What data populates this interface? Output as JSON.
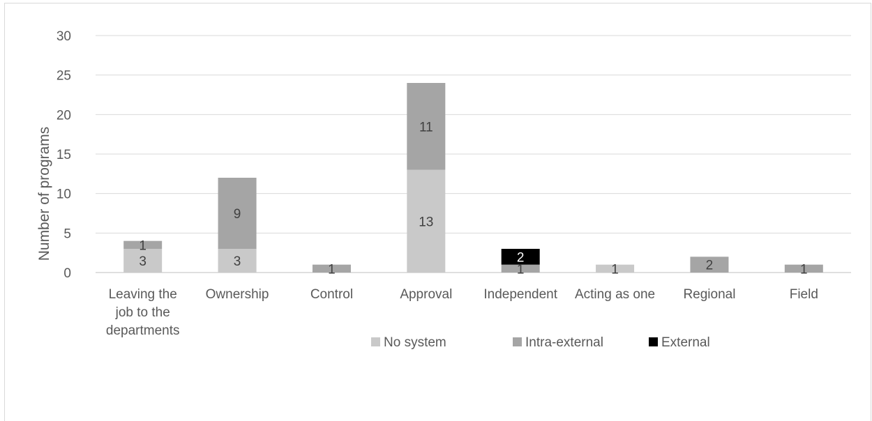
{
  "chart_data": {
    "type": "bar",
    "stacked": true,
    "title": "",
    "xlabel": "",
    "ylabel": "Number of programs",
    "ylim": [
      0,
      30
    ],
    "yticks": [
      0,
      5,
      10,
      15,
      20,
      25,
      30
    ],
    "grid": true,
    "legend_position": "bottom",
    "categories": [
      [
        "Leaving the",
        "job to the",
        "departments"
      ],
      [
        "Ownership"
      ],
      [
        "Control"
      ],
      [
        "Approval"
      ],
      [
        "Independent"
      ],
      [
        "Acting as one"
      ],
      [
        "Regional"
      ],
      [
        "Field"
      ]
    ],
    "series": [
      {
        "name": "No system",
        "color": "#c9c9c9",
        "values": [
          3,
          3,
          0,
          13,
          0,
          1,
          0,
          0
        ]
      },
      {
        "name": "Intra-external",
        "color": "#a5a5a5",
        "values": [
          1,
          9,
          1,
          11,
          1,
          0,
          2,
          1
        ]
      },
      {
        "name": "External",
        "color": "#000000",
        "values": [
          0,
          0,
          0,
          0,
          2,
          0,
          0,
          0
        ]
      }
    ],
    "data_labels": [
      [
        "3",
        "3",
        "",
        "13",
        "",
        "1",
        "",
        ""
      ],
      [
        "1",
        "9",
        "1",
        "11",
        "1",
        "",
        "2",
        "1"
      ],
      [
        "",
        "",
        "",
        "",
        "2",
        "",
        "",
        ""
      ]
    ]
  }
}
